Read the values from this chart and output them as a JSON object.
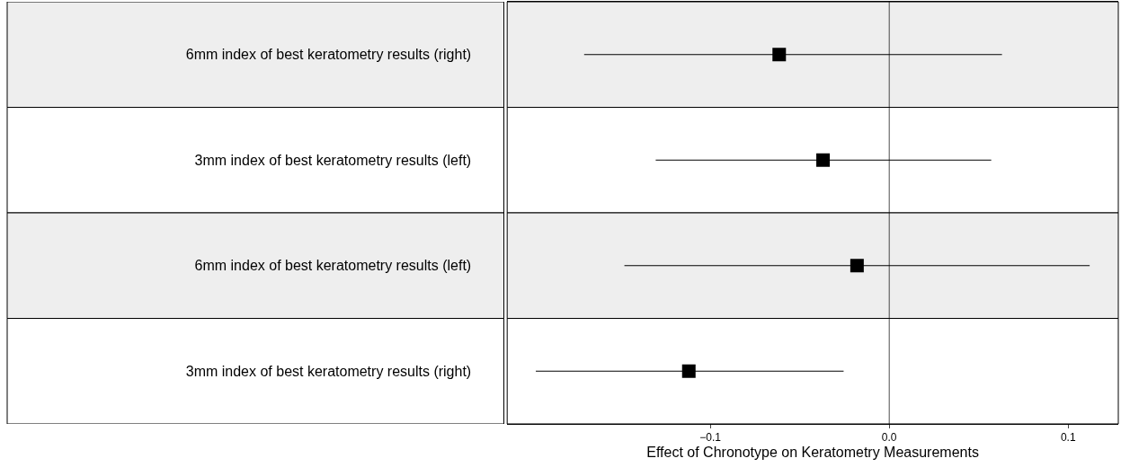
{
  "chart_data": {
    "type": "scatter",
    "orientation": "horizontal",
    "categories": [
      "6mm index of best keratometry results (right)",
      "3mm index of best keratometry results (left)",
      "6mm index of best keratometry results (left)",
      "3mm index of best keratometry results (right)"
    ],
    "values": [
      -0.0615,
      -0.037,
      -0.018,
      -0.112
    ],
    "errors": [
      [
        -0.1705,
        0.063
      ],
      [
        -0.1305,
        0.057
      ],
      [
        -0.148,
        0.112
      ],
      [
        -0.1975,
        -0.0255
      ]
    ],
    "color": "#000000",
    "marker": "square",
    "xlabel": "Effect of Chronotype on Keratometry Measurements",
    "xlim": [
      -0.2135,
      0.128
    ],
    "xticks": [
      {
        "value": -0.1,
        "label": "−0.1"
      },
      {
        "value": 0,
        "label": "0.0"
      },
      {
        "value": 0.1,
        "label": "0.1"
      }
    ],
    "ref_lines": [
      {
        "axis": "x",
        "value": 0,
        "color": "#000000"
      }
    ],
    "grid": false,
    "legend": false
  }
}
